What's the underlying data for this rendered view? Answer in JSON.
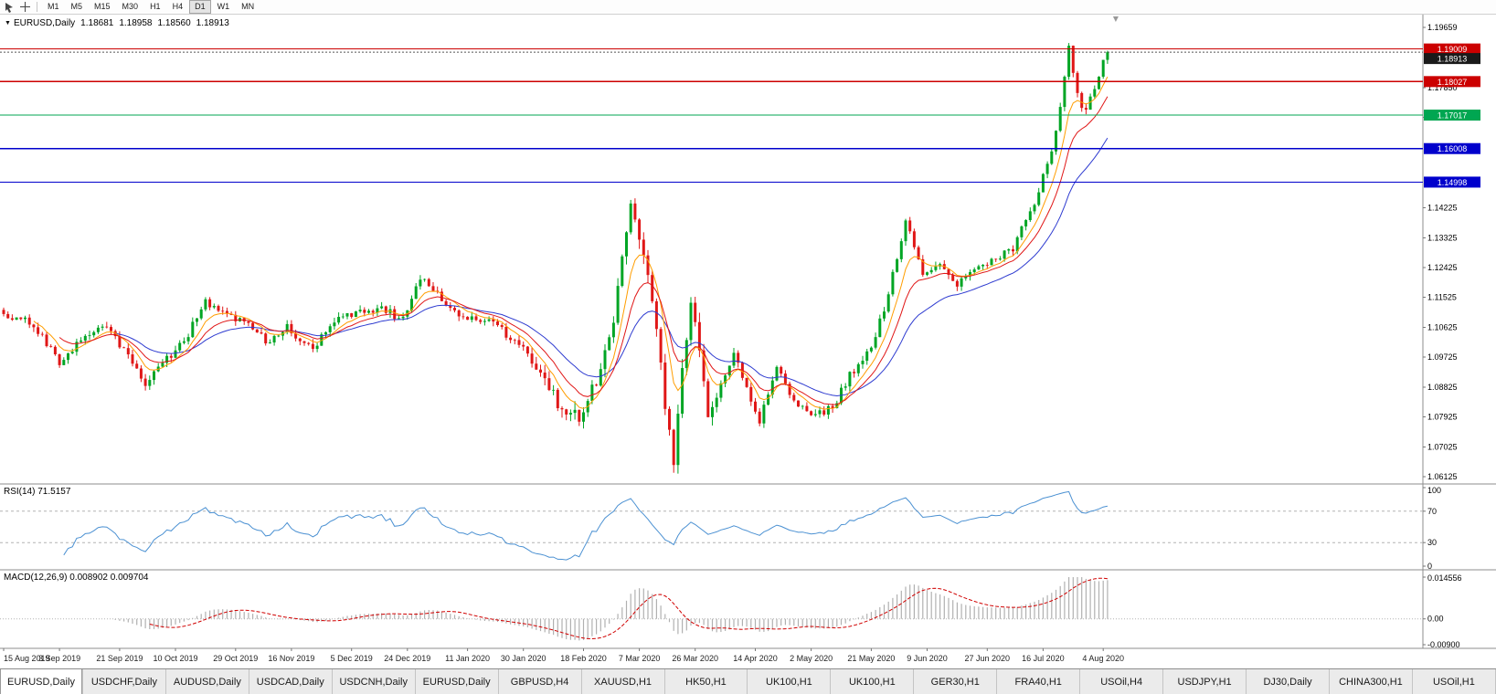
{
  "toolbar": {
    "icons": [
      {
        "name": "chart-cursor-icon"
      },
      {
        "name": "crosshair-icon"
      }
    ],
    "timeframes": [
      "M1",
      "M5",
      "M15",
      "M30",
      "H1",
      "H4",
      "D1",
      "W1",
      "MN"
    ],
    "active_timeframe": "D1"
  },
  "chart": {
    "dropdown_marker": "▼",
    "symbol": "EURUSD,Daily",
    "open": "1.18681",
    "high": "1.18958",
    "low": "1.18560",
    "close": "1.18913"
  },
  "price_axis": {
    "max": 1.19659,
    "min": 1.06125,
    "labels": [
      "1.19659",
      "1.17850",
      "1.16950",
      "1.14225",
      "1.13325",
      "1.12425",
      "1.11525",
      "1.10625",
      "1.09725",
      "1.08825",
      "1.07925",
      "1.07025",
      "1.06125"
    ]
  },
  "hlines": [
    {
      "price": 1.19009,
      "label": "1.19009",
      "color": "#cc0000"
    },
    {
      "price": 1.18027,
      "label": "1.18027",
      "color": "#cc0000"
    },
    {
      "price": 1.17017,
      "label": "1.17017",
      "color": "#00a651"
    },
    {
      "price": 1.16008,
      "label": "1.16008",
      "color": "#0000cc"
    },
    {
      "price": 1.14998,
      "label": "1.14998",
      "color": "#0000cc"
    }
  ],
  "current_price": {
    "value": 1.18913,
    "label": "1.18913",
    "badge_color": "#1a1a1a"
  },
  "rsi_panel": {
    "label": "RSI(14) 71.5157",
    "period": 14,
    "value": 71.5157,
    "line_color": "#4a90d2",
    "axis_labels": [
      {
        "text": "100",
        "value": 100
      },
      {
        "text": "70",
        "value": 70
      },
      {
        "text": "30",
        "value": 30
      },
      {
        "text": "0",
        "value": 0
      }
    ],
    "dashed_levels": [
      70,
      30
    ]
  },
  "macd_panel": {
    "label": "MACD(12,26,9) 0.008902 0.009704",
    "fast": 12,
    "slow": 26,
    "signal_period": 9,
    "main_value": 0.008902,
    "signal_value": 0.009704,
    "max": 0.014556,
    "min": -0.009,
    "bar_color": "#b0b0b0",
    "signal_color": "#d00000",
    "axis_labels": [
      {
        "text": "0.014556",
        "value": 0.014556
      },
      {
        "text": "0.00",
        "value": 0
      },
      {
        "text": "-0.00900",
        "value": -0.009
      }
    ]
  },
  "date_axis": {
    "labels": [
      "15 Aug 2019",
      "3 Sep 2019",
      "21 Sep 2019",
      "10 Oct 2019",
      "29 Oct 2019",
      "16 Nov 2019",
      "5 Dec 2019",
      "24 Dec 2019",
      "11 Jan 2020",
      "30 Jan 2020",
      "18 Feb 2020",
      "7 Mar 2020",
      "26 Mar 2020",
      "14 Apr 2020",
      "2 May 2020",
      "21 May 2020",
      "9 Jun 2020",
      "27 Jun 2020",
      "16 Jul 2020",
      "4 Aug 2020"
    ]
  },
  "tabs": {
    "active_index": 0,
    "items": [
      "EURUSD,Daily",
      "USDCHF,Daily",
      "AUDUSD,Daily",
      "USDCAD,Daily",
      "USDCNH,Daily",
      "EURUSD,Daily",
      "GBPUSD,H4",
      "XAUUSD,H1",
      "HK50,H1",
      "UK100,H1",
      "UK100,H1",
      "GER30,H1",
      "FRA40,H1",
      "USOil,H4",
      "USDJPY,H1",
      "DJ30,Daily",
      "CHINA300,H1",
      "USOil,H1"
    ]
  },
  "colors": {
    "up": "#00a524",
    "down": "#e01717",
    "ma_fast": "#ff9d00",
    "ma_mid": "#e01717",
    "ma_slow": "#2e3bd0",
    "grid_gray": "#8c8c8c"
  },
  "chart_data": {
    "type": "candlestick",
    "symbol": "EURUSD",
    "timeframe": "Daily",
    "count": 258,
    "ylim": [
      1.06125,
      1.19659
    ],
    "anchors": [
      [
        0,
        1.1105
      ],
      [
        6,
        1.1075
      ],
      [
        11,
        1.1
      ],
      [
        13,
        1.094
      ],
      [
        18,
        1.103
      ],
      [
        24,
        1.1065
      ],
      [
        28,
        1.0995
      ],
      [
        33,
        1.0895
      ],
      [
        37,
        1.0955
      ],
      [
        42,
        1.102
      ],
      [
        47,
        1.114
      ],
      [
        52,
        1.11
      ],
      [
        57,
        1.107
      ],
      [
        62,
        1.1015
      ],
      [
        66,
        1.106
      ],
      [
        72,
        1.1
      ],
      [
        77,
        1.108
      ],
      [
        82,
        1.1105
      ],
      [
        88,
        1.112
      ],
      [
        93,
        1.1085
      ],
      [
        97,
        1.121
      ],
      [
        102,
        1.115
      ],
      [
        107,
        1.1095
      ],
      [
        113,
        1.1085
      ],
      [
        119,
        1.102
      ],
      [
        125,
        1.0945
      ],
      [
        129,
        1.084
      ],
      [
        134,
        1.079
      ],
      [
        138,
        1.09
      ],
      [
        142,
        1.109
      ],
      [
        146,
        1.144
      ],
      [
        149,
        1.129
      ],
      [
        152,
        1.105
      ],
      [
        154,
        1.083
      ],
      [
        156,
        1.066
      ],
      [
        158,
        1.095
      ],
      [
        160,
        1.114
      ],
      [
        164,
        1.08
      ],
      [
        170,
        1.099
      ],
      [
        176,
        1.0775
      ],
      [
        180,
        1.095
      ],
      [
        184,
        1.083
      ],
      [
        189,
        1.08
      ],
      [
        193,
        1.082
      ],
      [
        197,
        1.092
      ],
      [
        201,
        1.098
      ],
      [
        205,
        1.111
      ],
      [
        210,
        1.139
      ],
      [
        214,
        1.1215
      ],
      [
        218,
        1.126
      ],
      [
        222,
        1.119
      ],
      [
        226,
        1.1245
      ],
      [
        231,
        1.127
      ],
      [
        235,
        1.13
      ],
      [
        240,
        1.144
      ],
      [
        244,
        1.16
      ],
      [
        246,
        1.172
      ],
      [
        248,
        1.19
      ],
      [
        250,
        1.176
      ],
      [
        252,
        1.171
      ],
      [
        254,
        1.179
      ],
      [
        256,
        1.1845
      ],
      [
        257,
        1.1891
      ]
    ],
    "ma_periods_estimate": [
      7,
      13,
      26
    ]
  }
}
